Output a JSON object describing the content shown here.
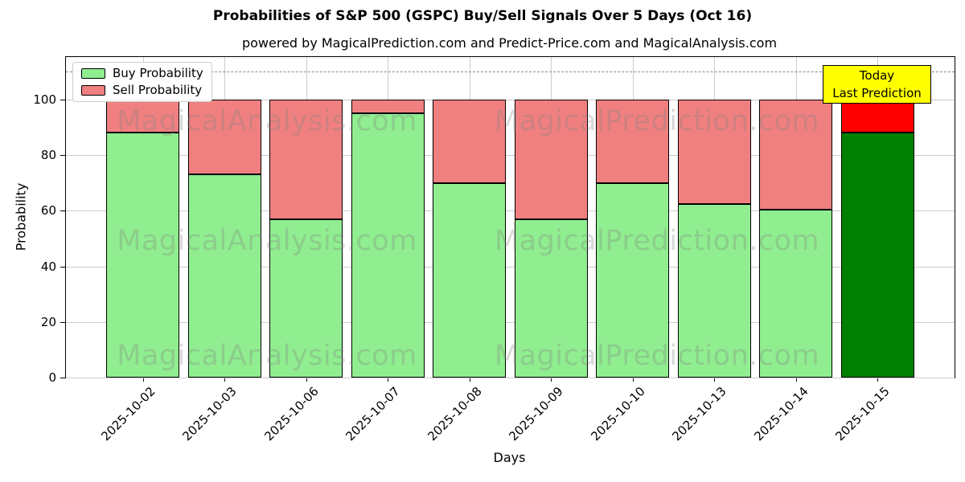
{
  "chart_data": {
    "type": "bar",
    "stacked": true,
    "title": "Probabilities of S&P 500 (GSPC) Buy/Sell Signals Over 5 Days (Oct 16)",
    "subtitle": "powered by MagicalPrediction.com and Predict-Price.com and MagicalAnalysis.com",
    "xlabel": "Days",
    "ylabel": "Probability",
    "categories": [
      "2025-10-02",
      "2025-10-03",
      "2025-10-06",
      "2025-10-07",
      "2025-10-08",
      "2025-10-09",
      "2025-10-10",
      "2025-10-13",
      "2025-10-14",
      "2025-10-15"
    ],
    "series": [
      {
        "name": "Buy Probability",
        "color": "#90ee90",
        "values": [
          88,
          73,
          57,
          95,
          70,
          57,
          70,
          62.5,
          60.5,
          88
        ]
      },
      {
        "name": "Sell Probability",
        "color": "#f08080",
        "values": [
          12,
          27,
          43,
          5,
          30,
          43,
          30,
          37.5,
          39.5,
          12
        ]
      }
    ],
    "last_bar_highlight": {
      "buy_color": "#008000",
      "sell_color": "#ff0000"
    },
    "ylim": [
      0,
      115.3
    ],
    "yticks": [
      0,
      20,
      40,
      60,
      80,
      100
    ],
    "dashed_hline": 110,
    "grid": true,
    "legend_position": "upper left"
  },
  "legend": {
    "items": [
      {
        "label": "Buy Probability",
        "color": "#90ee90"
      },
      {
        "label": "Sell Probability",
        "color": "#f08080"
      }
    ]
  },
  "annotation": {
    "lines": [
      "Today",
      "Last Prediction"
    ],
    "bg_color": "#ffff00"
  },
  "watermarks": {
    "left_text": "MagicalAnalysis.com",
    "right_text": "MagicalPrediction.com"
  }
}
